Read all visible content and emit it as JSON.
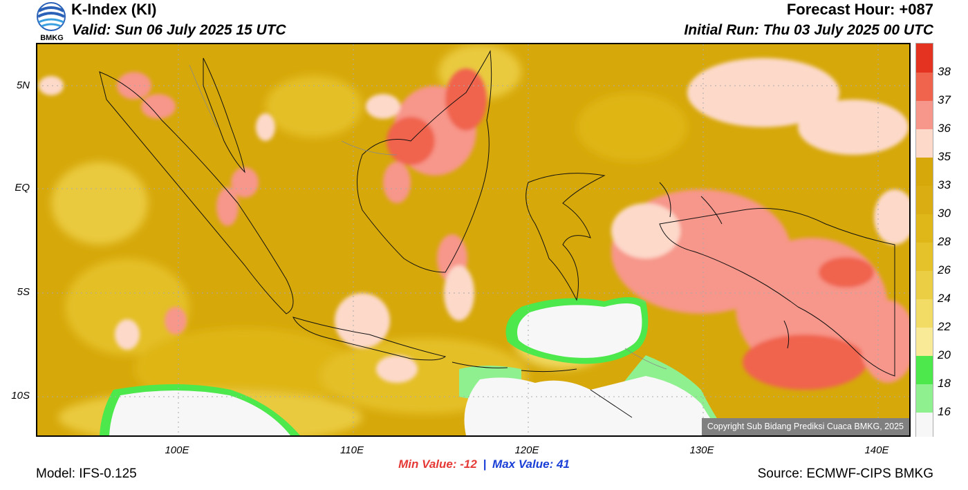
{
  "header": {
    "logo_text": "BMKG",
    "title": "K-Index (KI)",
    "valid": "Valid: Sun 06 July 2025 15 UTC",
    "forecast_hour": "Forecast Hour: +087",
    "initial_run": "Initial Run: Thu 03 July 2025 00 UTC"
  },
  "map": {
    "lat_labels": [
      "5N",
      "EQ",
      "5S",
      "10S"
    ],
    "lon_labels": [
      "100E",
      "110E",
      "120E",
      "130E",
      "140E"
    ],
    "copyright": "Copyright Sub Bidang Prediksi Cuaca BMKG, 2025",
    "base_color": "#D6A80A"
  },
  "colorbar": {
    "labels": [
      "38",
      "37",
      "36",
      "35",
      "33",
      "30",
      "28",
      "26",
      "24",
      "22",
      "20",
      "18",
      "16"
    ],
    "colors": [
      "#E53322",
      "#F0644E",
      "#F7968A",
      "#FDD9CA",
      "#D6A80A",
      "#DAAE12",
      "#E0B718",
      "#E6C22A",
      "#ECCE44",
      "#F2DC66",
      "#F8EA96",
      "#4CE84C",
      "#8EF08E",
      "#F7F7F7"
    ]
  },
  "stats": {
    "min_label": "Min Value: -12",
    "separator": "|",
    "max_label": "Max Value:  41"
  },
  "footer": {
    "model": "Model: IFS-0.125",
    "source": "Source: ECMWF-CIPS BMKG"
  }
}
